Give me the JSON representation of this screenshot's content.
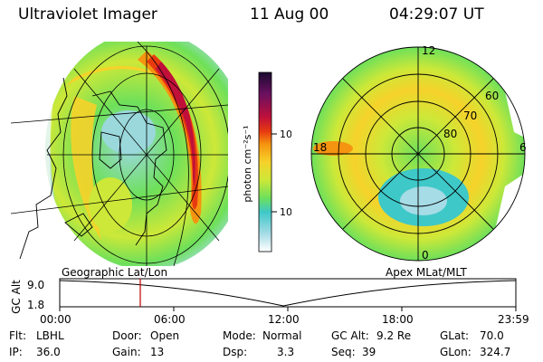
{
  "header": {
    "instrument": "Ultraviolet Imager",
    "date": "11 Aug 00",
    "time": "04:29:07 UT"
  },
  "colorbar": {
    "unit": "photon cm⁻²s⁻¹",
    "tick_major": "100",
    "tick_minor": "10",
    "colors": [
      "#1a0a30",
      "#6a1060",
      "#c0103a",
      "#e83a10",
      "#f59410",
      "#f6d22a",
      "#cde838",
      "#6ee05a",
      "#3ec8c8",
      "#a6dce6",
      "#ffffff"
    ]
  },
  "left_map": {
    "caption": "Geographic Lat/Lon"
  },
  "right_map": {
    "caption": "Apex MLat/MLT",
    "mlt_labels": [
      "12",
      "18",
      "6",
      "0"
    ],
    "lat_labels": [
      "60",
      "70",
      "80"
    ]
  },
  "timeline": {
    "axis_label": "GC Alt",
    "y_ticks": [
      "9.0",
      "1.8"
    ],
    "x_ticks": [
      "00:00",
      "06:00",
      "12:00",
      "18:00",
      "23:59"
    ]
  },
  "status": {
    "filter_label": "Flt:",
    "filter_value": "LBHL",
    "ip_label": "IP:",
    "ip_value": "36.0",
    "door_label": "Door:",
    "door_value": "Open",
    "gain_label": "Gain:",
    "gain_value": "13",
    "mode_label": "Mode:",
    "mode_value": "Normal",
    "dsp_label": "Dsp:",
    "dsp_value": "3.3",
    "gcalt_label": "GC Alt:",
    "gcalt_value": "9.2 Re",
    "seq_label": "Seq:",
    "seq_value": "39",
    "glat_label": "GLat:",
    "glat_value": "70.0",
    "glon_label": "GLon:",
    "glon_value": "324.7"
  }
}
